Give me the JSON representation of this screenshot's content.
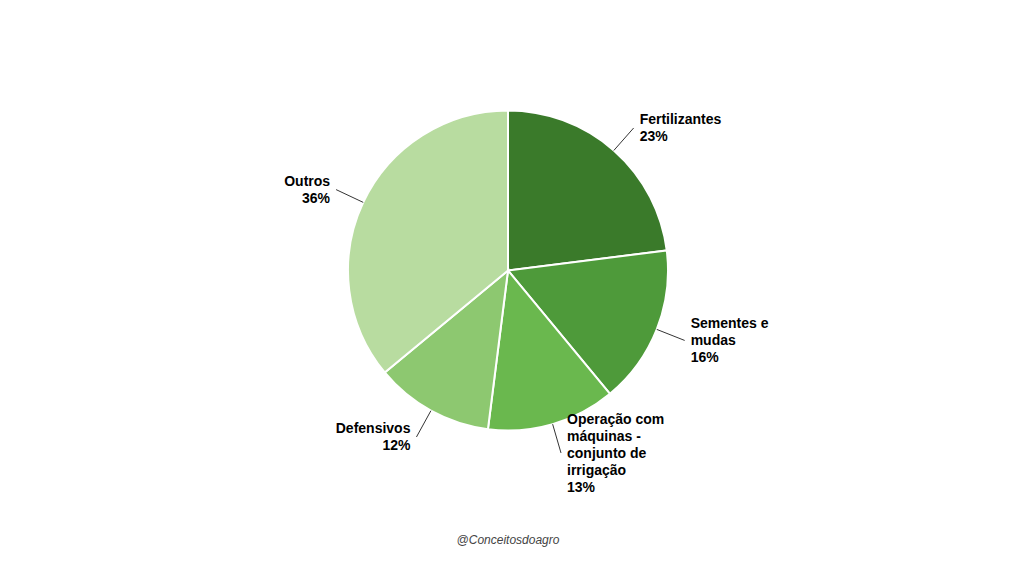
{
  "chart_data": {
    "type": "pie",
    "categories": [
      "Fertilizantes",
      "Sementes e\nmudas",
      "Operação com\nmáquinas -\nconjunto de\nirrigação",
      "Defensivos",
      "Outros"
    ],
    "values": [
      23,
      16,
      13,
      12,
      36
    ],
    "value_labels": [
      "23%",
      "16%",
      "13%",
      "12%",
      "36%"
    ],
    "colors": [
      "#3a7a2a",
      "#4e9a3a",
      "#6ab84e",
      "#8dc870",
      "#b8dca0"
    ],
    "annotation": "@Conceitosdoagro"
  }
}
